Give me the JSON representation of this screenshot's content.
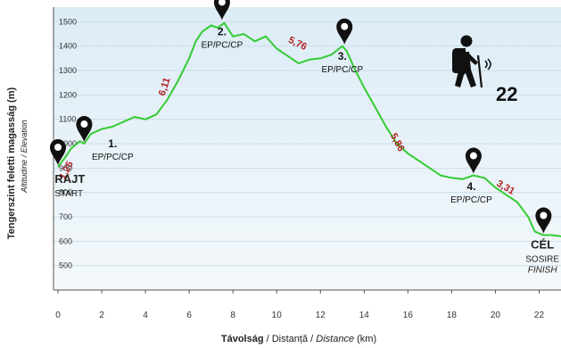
{
  "chart_data": {
    "type": "line",
    "title": "",
    "xlabel": {
      "parts": [
        {
          "text": "Távolság",
          "weight": "bold",
          "style": "normal"
        },
        {
          "text": " / Distanță / ",
          "weight": "normal",
          "style": "normal"
        },
        {
          "text": "Distance",
          "weight": "normal",
          "style": "italic"
        },
        {
          "text": " (km)",
          "weight": "normal",
          "style": "normal"
        }
      ]
    },
    "ylabel": "Tengerszint feletti magasság (m)",
    "ylabel_sub": "Altitudine / Elevation",
    "xlim": [
      0,
      23
    ],
    "ylim": [
      400,
      1560
    ],
    "x_ticks": [
      "0",
      "2",
      "4",
      "6",
      "8",
      "10",
      "12",
      "14",
      "16",
      "18",
      "20",
      "22"
    ],
    "y_ticks": [
      "500",
      "600",
      "700",
      "800",
      "900",
      "1000",
      "1100",
      "1200",
      "1300",
      "1400",
      "1500"
    ],
    "line_color": "#33cc33",
    "label_color": "#b22222",
    "grid": true,
    "series": [
      {
        "x": [
          0,
          0.3,
          0.6,
          1.0,
          1.2,
          1.5,
          2,
          2.5,
          3,
          3.5,
          4,
          4.5,
          5,
          5.5,
          6,
          6.3,
          6.6,
          7,
          7.3,
          7.6,
          8,
          8.5,
          9,
          9.5,
          10,
          10.5,
          11,
          11.5,
          12,
          12.5,
          13,
          13.2,
          13.6,
          14,
          14.5,
          15,
          15.5,
          16,
          16.5,
          17,
          17.5,
          18,
          18.5,
          19,
          19.5,
          20,
          20.5,
          21,
          21.5,
          21.8,
          22.2,
          22.6,
          23
        ],
        "y": [
          905,
          940,
          980,
          1010,
          1000,
          1040,
          1060,
          1070,
          1090,
          1110,
          1100,
          1120,
          1180,
          1260,
          1350,
          1420,
          1460,
          1485,
          1475,
          1495,
          1440,
          1450,
          1420,
          1440,
          1390,
          1360,
          1330,
          1345,
          1350,
          1365,
          1400,
          1380,
          1300,
          1230,
          1150,
          1070,
          1000,
          960,
          930,
          900,
          870,
          860,
          855,
          870,
          860,
          820,
          790,
          760,
          700,
          640,
          625,
          625,
          620
        ]
      }
    ],
    "segment_labels": [
      {
        "text": "1,25",
        "x": 0.5,
        "y": 885,
        "angle": -62
      },
      {
        "text": "6,11",
        "x": 5.0,
        "y": 1230,
        "angle": -72
      },
      {
        "text": "5,76",
        "x": 10.9,
        "y": 1400,
        "angle": 25
      },
      {
        "text": "5,86",
        "x": 15.4,
        "y": 1000,
        "angle": 62
      },
      {
        "text": "3,31",
        "x": 20.4,
        "y": 810,
        "angle": 30
      }
    ],
    "annotations": [
      {
        "x": 0,
        "y": 905,
        "pin": true,
        "lines": [
          {
            "text": "RAJT",
            "weight": "bold",
            "style": "normal",
            "size": 13,
            "color": "#222"
          },
          {
            "text": "START",
            "weight": "normal",
            "style": "normal",
            "size": 10,
            "color": "#222"
          }
        ],
        "text_x": -0.15,
        "text_y": 840,
        "anchor": "start"
      },
      {
        "x": 1.2,
        "y": 1000,
        "pin": true,
        "lines": [
          {
            "text": "1.",
            "weight": "bold",
            "style": "normal",
            "size": 12,
            "color": "#111"
          },
          {
            "text": "EP/PC/CP",
            "weight": "normal",
            "style": "normal",
            "size": 10,
            "color": "#111"
          }
        ],
        "text_x": 2.5,
        "text_y": 985,
        "anchor": "middle"
      },
      {
        "x": 7.5,
        "y": 1500,
        "pin": true,
        "lines": [
          {
            "text": "2.",
            "weight": "bold",
            "style": "normal",
            "size": 12,
            "color": "#111"
          },
          {
            "text": "EP/PC/CP",
            "weight": "normal",
            "style": "normal",
            "size": 10,
            "color": "#111"
          }
        ],
        "text_x": 7.5,
        "text_y": 1445,
        "anchor": "middle"
      },
      {
        "x": 13.1,
        "y": 1400,
        "pin": true,
        "lines": [
          {
            "text": "3.",
            "weight": "bold",
            "style": "normal",
            "size": 12,
            "color": "#111"
          },
          {
            "text": "EP/PC/CP",
            "weight": "normal",
            "style": "normal",
            "size": 10,
            "color": "#111"
          }
        ],
        "text_x": 13.0,
        "text_y": 1345,
        "anchor": "middle"
      },
      {
        "x": 19.0,
        "y": 870,
        "pin": true,
        "lines": [
          {
            "text": "4.",
            "weight": "bold",
            "style": "normal",
            "size": 12,
            "color": "#111"
          },
          {
            "text": "EP/PC/CP",
            "weight": "normal",
            "style": "normal",
            "size": 10,
            "color": "#111"
          }
        ],
        "text_x": 18.9,
        "text_y": 810,
        "anchor": "middle"
      },
      {
        "x": 22.2,
        "y": 625,
        "pin": true,
        "lines": [
          {
            "text": "CÉL",
            "weight": "bold",
            "style": "normal",
            "size": 13,
            "color": "#222"
          },
          {
            "text": "SOSIRE",
            "weight": "normal",
            "style": "normal",
            "size": 10,
            "color": "#222"
          },
          {
            "text": "FINISH",
            "weight": "normal",
            "style": "italic",
            "size": 10,
            "color": "#222"
          }
        ],
        "text_x": 22.15,
        "text_y": 570,
        "anchor": "middle"
      }
    ]
  },
  "hiker": {
    "icon": "hiker-icon",
    "number": "22"
  }
}
